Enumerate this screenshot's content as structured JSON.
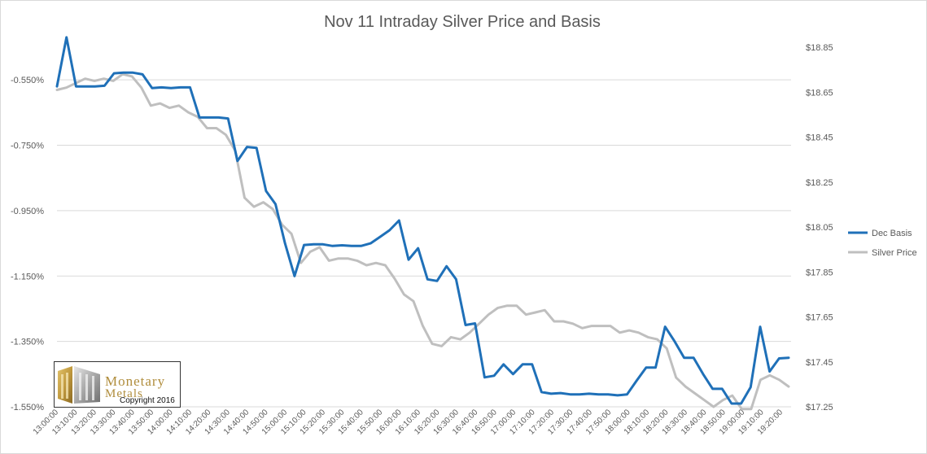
{
  "chart_data": {
    "type": "line",
    "title": "Nov 11 Intraday Silver Price and Basis",
    "legend_position": "right",
    "grid": true,
    "y_left": {
      "ticks": [
        "-0.550%",
        "-0.750%",
        "-0.950%",
        "-1.150%",
        "-1.350%",
        "-1.550%"
      ],
      "range": [
        -1.55,
        -0.45
      ]
    },
    "y_right": {
      "ticks": [
        "$18.85",
        "$18.65",
        "$18.45",
        "$18.25",
        "$18.05",
        "$17.85",
        "$17.65",
        "$17.45",
        "$17.25"
      ],
      "range": [
        17.25,
        18.85
      ]
    },
    "x_labels": [
      "13:00:00",
      "13:10:00",
      "13:20:00",
      "13:30:00",
      "13:40:00",
      "13:50:00",
      "14:00:00",
      "14:10:00",
      "14:20:00",
      "14:30:00",
      "14:40:00",
      "14:50:00",
      "15:00:00",
      "15:10:00",
      "15:20:00",
      "15:30:00",
      "15:40:00",
      "15:50:00",
      "16:00:00",
      "16:10:00",
      "16:20:00",
      "16:30:00",
      "16:40:00",
      "16:50:00",
      "17:00:00",
      "17:10:00",
      "17:20:00",
      "17:30:00",
      "17:40:00",
      "17:50:00",
      "18:00:00",
      "18:10:00",
      "18:20:00",
      "18:30:00",
      "18:40:00",
      "18:50:00",
      "19:00:00",
      "19:10:00",
      "19:20:00"
    ],
    "series": [
      {
        "name": "Dec Basis",
        "color": "#1f70b8",
        "axis": "left",
        "values": [
          -0.57,
          -0.42,
          -0.57,
          -0.57,
          -0.57,
          -0.568,
          -0.53,
          -0.528,
          -0.528,
          -0.533,
          -0.575,
          -0.573,
          -0.575,
          -0.573,
          -0.573,
          -0.665,
          -0.665,
          -0.665,
          -0.668,
          -0.798,
          -0.755,
          -0.758,
          -0.89,
          -0.93,
          -1.05,
          -1.15,
          -1.055,
          -1.053,
          -1.053,
          -1.058,
          -1.056,
          -1.058,
          -1.058,
          -1.05,
          -1.03,
          -1.01,
          -0.98,
          -1.1,
          -1.065,
          -1.16,
          -1.165,
          -1.12,
          -1.16,
          -1.3,
          -1.295,
          -1.46,
          -1.455,
          -1.42,
          -1.45,
          -1.42,
          -1.42,
          -1.505,
          -1.51,
          -1.508,
          -1.512,
          -1.512,
          -1.51,
          -1.512,
          -1.512,
          -1.515,
          -1.512,
          -1.47,
          -1.43,
          -1.43,
          -1.305,
          -1.35,
          -1.4,
          -1.4,
          -1.45,
          -1.495,
          -1.495,
          -1.54,
          -1.54,
          -1.49,
          -1.305,
          -1.442,
          -1.402,
          -1.4
        ]
      },
      {
        "name": "Silver Price",
        "color": "#bfbfbf",
        "axis": "right",
        "values": [
          18.66,
          18.67,
          18.69,
          18.71,
          18.7,
          18.71,
          18.7,
          18.73,
          18.72,
          18.67,
          18.59,
          18.6,
          18.58,
          18.59,
          18.56,
          18.54,
          18.49,
          18.49,
          18.46,
          18.39,
          18.18,
          18.14,
          18.16,
          18.13,
          18.06,
          18.02,
          17.89,
          17.94,
          17.96,
          17.9,
          17.91,
          17.91,
          17.9,
          17.88,
          17.89,
          17.88,
          17.82,
          17.75,
          17.72,
          17.61,
          17.53,
          17.52,
          17.56,
          17.55,
          17.58,
          17.62,
          17.66,
          17.69,
          17.7,
          17.7,
          17.66,
          17.67,
          17.68,
          17.63,
          17.63,
          17.62,
          17.6,
          17.61,
          17.61,
          17.61,
          17.58,
          17.59,
          17.58,
          17.56,
          17.55,
          17.51,
          17.38,
          17.34,
          17.31,
          17.28,
          17.25,
          17.28,
          17.3,
          17.24,
          17.24,
          17.37,
          17.39,
          17.37,
          17.34
        ]
      }
    ]
  },
  "logo": {
    "line1": "Monetary",
    "line2": "Metals",
    "copyright": "Copyright 2016"
  }
}
